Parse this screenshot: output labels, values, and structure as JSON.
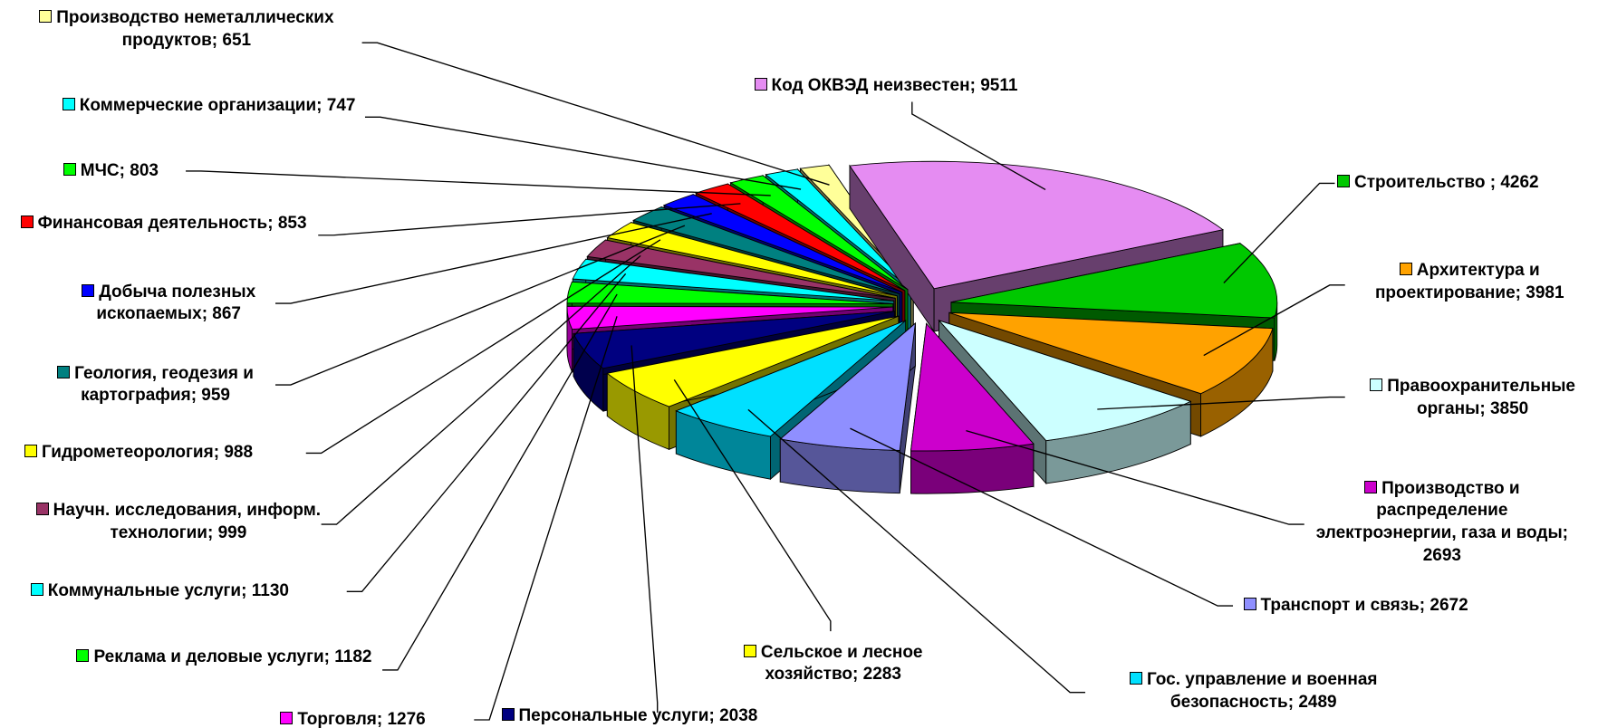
{
  "chart_data": {
    "type": "pie",
    "three_d": true,
    "exploded": true,
    "separator": "; ",
    "categories": [
      "Код ОКВЭД неизвестен",
      "Строительство ",
      "Архитектура и проектирование",
      "Правоохранительные органы",
      "Производство и распределение электроэнергии, газа и воды",
      "Транспорт и связь",
      "Гос. управление и военная безопасность",
      "Сельское и лесное хозяйство",
      "Персональные услуги",
      "Торговля",
      "Реклама и деловые услуги",
      "Коммунальные услуги",
      "Научн. исследования, информ. технологии",
      "Гидрометеорология",
      "Геология, геодезия и картография",
      "Добыча полезных ископаемых",
      "Финансовая деятельность",
      "МЧС",
      "Коммерческие организации",
      "Производство неметаллических продуктов"
    ],
    "values": [
      9511,
      4262,
      3981,
      3850,
      2693,
      2672,
      2489,
      2283,
      2038,
      1276,
      1182,
      1130,
      999,
      988,
      959,
      867,
      853,
      803,
      747,
      651
    ],
    "colors": [
      "#e58cf2",
      "#00c800",
      "#ffa200",
      "#ccffff",
      "#cc00cc",
      "#8f8fff",
      "#00e0ff",
      "#ffff00",
      "#000080",
      "#ff00ff",
      "#00ff00",
      "#00ffff",
      "#993366",
      "#ffff00",
      "#008080",
      "#0000ff",
      "#ff0000",
      "#00ff00",
      "#00ffff",
      "#ffff99"
    ]
  }
}
